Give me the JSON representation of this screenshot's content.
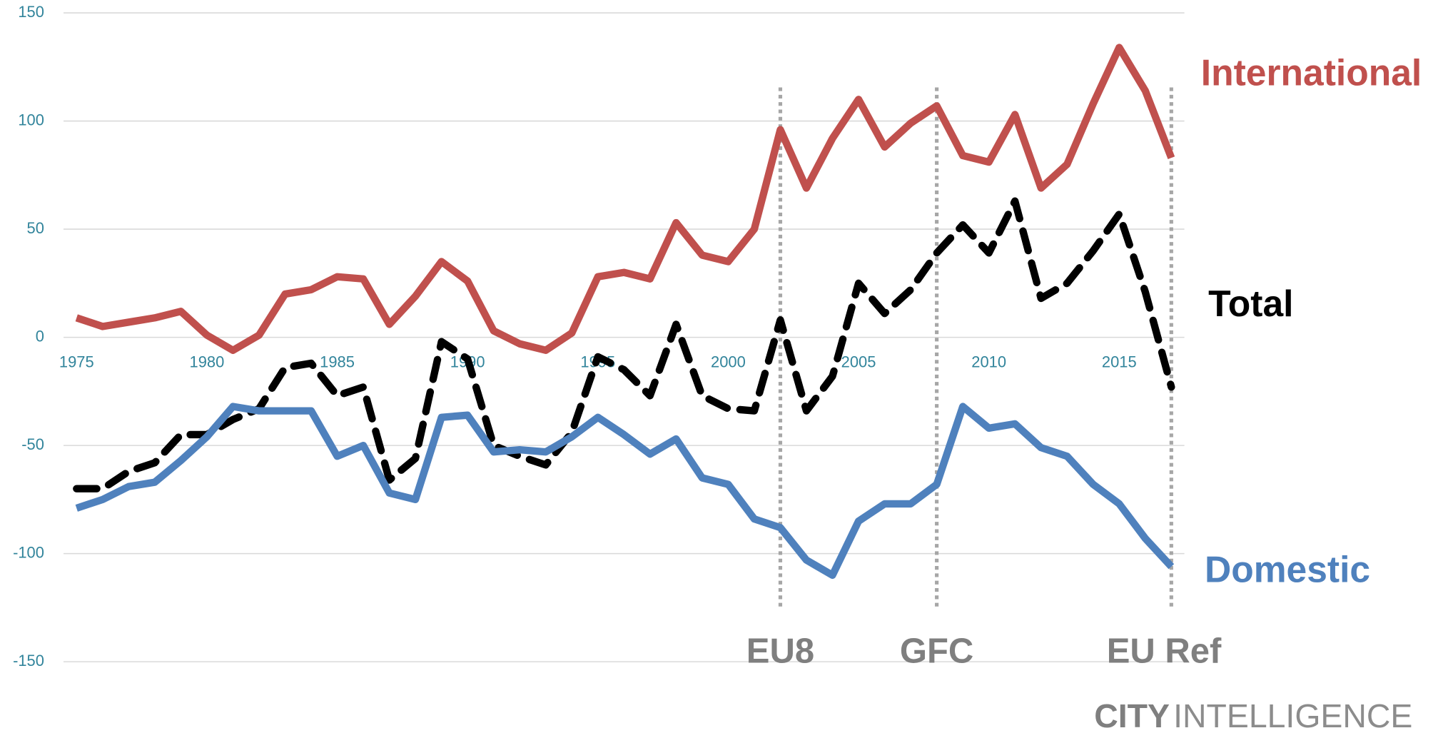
{
  "chart_data": {
    "type": "line",
    "x": [
      1975,
      1976,
      1977,
      1978,
      1979,
      1980,
      1981,
      1982,
      1983,
      1984,
      1985,
      1986,
      1987,
      1988,
      1989,
      1990,
      1991,
      1992,
      1993,
      1994,
      1995,
      1996,
      1997,
      1998,
      1999,
      2000,
      2001,
      2002,
      2003,
      2004,
      2005,
      2006,
      2007,
      2008,
      2009,
      2010,
      2011,
      2012,
      2013,
      2014,
      2015,
      2016,
      2017
    ],
    "series": [
      {
        "name": "International",
        "color": "#c0504d",
        "dashed": false,
        "values": [
          9,
          5,
          7,
          9,
          12,
          1,
          -6,
          1,
          20,
          22,
          28,
          27,
          6,
          19,
          35,
          26,
          3,
          -3,
          -6,
          2,
          28,
          30,
          27,
          53,
          38,
          35,
          50,
          96,
          69,
          92,
          110,
          88,
          99,
          107,
          84,
          81,
          103,
          69,
          80,
          108,
          134,
          114,
          83
        ]
      },
      {
        "name": "Total",
        "color": "#000000",
        "dashed": true,
        "values": [
          -70,
          -70,
          -62,
          -58,
          -45,
          -45,
          -38,
          -33,
          -14,
          -12,
          -27,
          -23,
          -66,
          -56,
          -2,
          -10,
          -50,
          -55,
          -59,
          -44,
          -9,
          -15,
          -27,
          6,
          -27,
          -33,
          -34,
          8,
          -34,
          -18,
          25,
          11,
          22,
          39,
          52,
          39,
          63,
          18,
          25,
          40,
          57,
          21,
          -23
        ]
      },
      {
        "name": "Domestic",
        "color": "#4f81bd",
        "dashed": false,
        "values": [
          -79,
          -75,
          -69,
          -67,
          -57,
          -46,
          -32,
          -34,
          -34,
          -34,
          -55,
          -50,
          -72,
          -75,
          -37,
          -36,
          -53,
          -52,
          -53,
          -46,
          -37,
          -45,
          -54,
          -47,
          -65,
          -68,
          -84,
          -88,
          -103,
          -110,
          -85,
          -77,
          -77,
          -68,
          -32,
          -42,
          -40,
          -51,
          -55,
          -68,
          -77,
          -93,
          -106
        ]
      }
    ],
    "xlim": [
      1974.5,
      2017.5
    ],
    "xticks": [
      1975,
      1980,
      1985,
      1990,
      1995,
      2000,
      2005,
      2010,
      2015
    ],
    "ylim": [
      -150,
      150
    ],
    "yticks": [
      -150,
      -100,
      -50,
      0,
      50,
      100,
      150
    ],
    "grid": true,
    "events": [
      {
        "label": "EU8",
        "x": 2002
      },
      {
        "label": "GFC",
        "x": 2008
      },
      {
        "label": "EU Ref",
        "x": 2017
      }
    ],
    "brand": {
      "bold": "CITY",
      "light": "INTELLIGENCE"
    }
  }
}
